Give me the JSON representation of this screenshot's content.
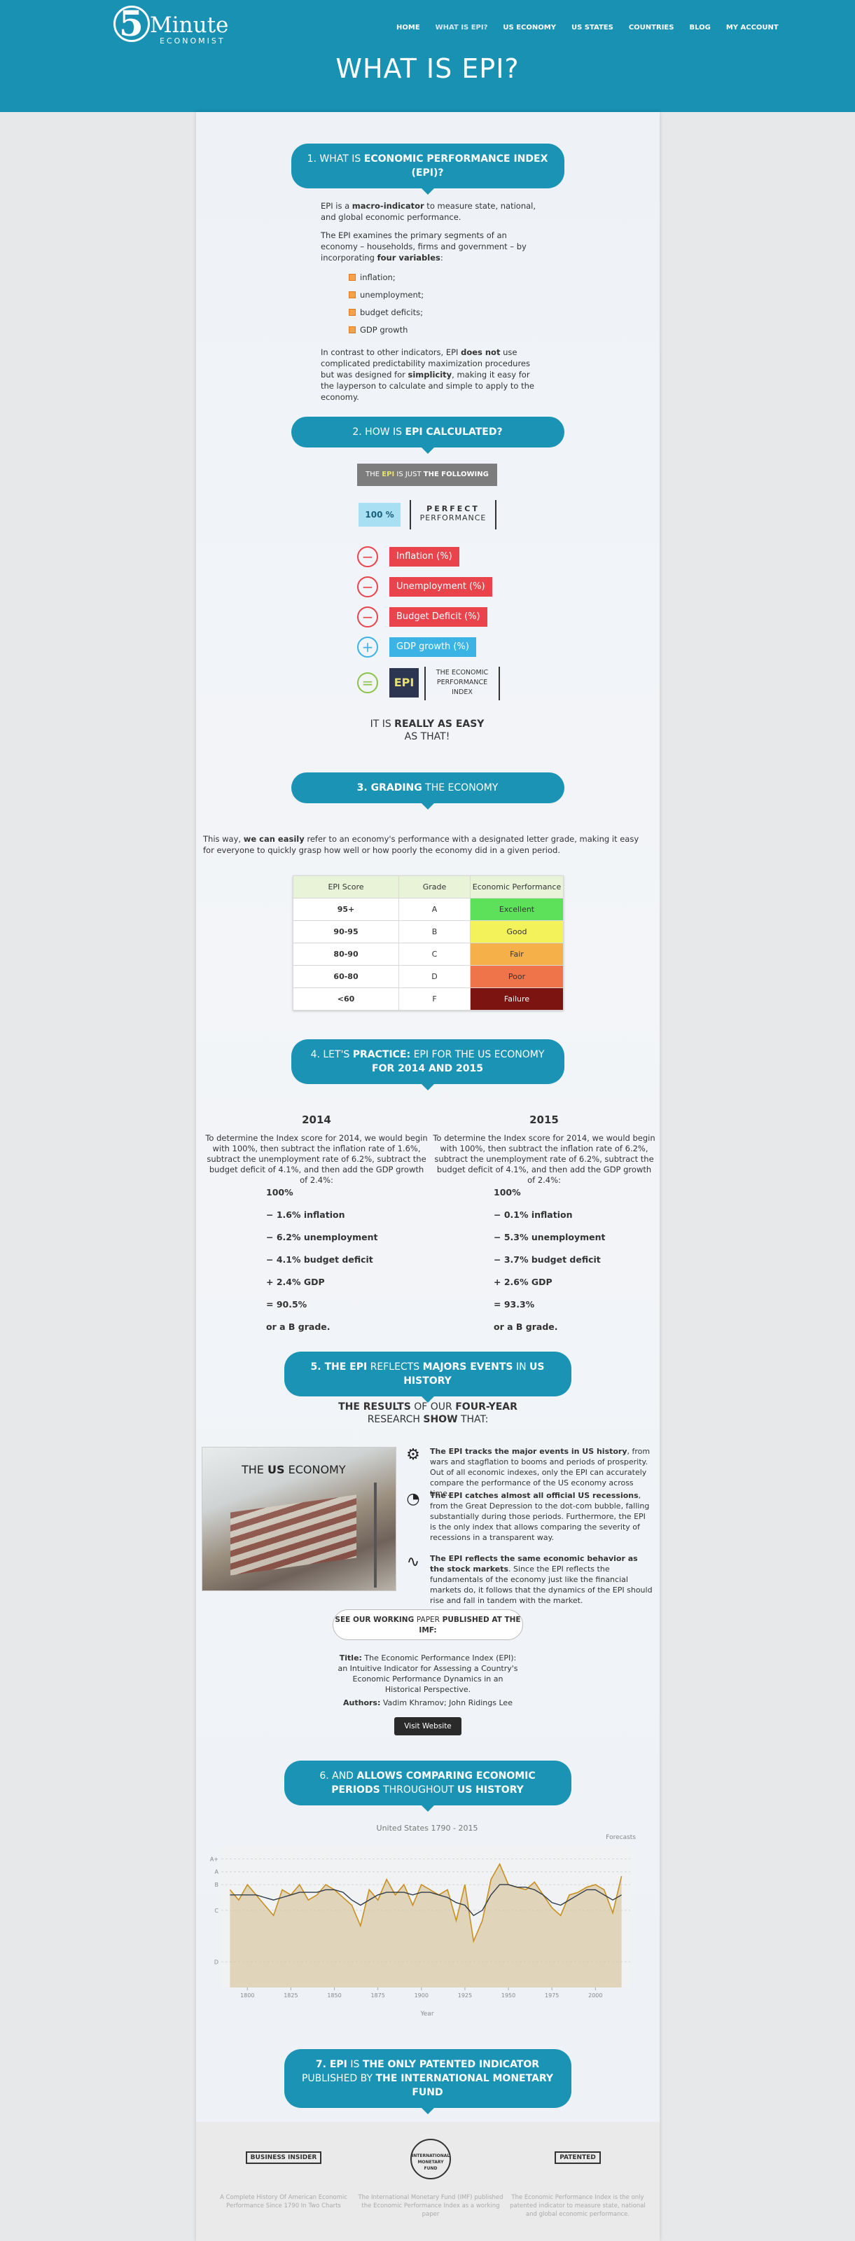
{
  "header": {
    "logo_number": "5",
    "logo_word": "Minute",
    "logo_sub": "ECONOMIST",
    "nav": [
      "HOME",
      "WHAT IS EPI?",
      "US ECONOMY",
      "US STATES",
      "COUNTRIES",
      "BLOG",
      "MY ACCOUNT"
    ],
    "title": "WHAT IS EPI?"
  },
  "section1": {
    "heading": {
      "parts": [
        "1. WHAT IS ",
        "ECONOMIC PERFORMANCE INDEX (EPI)?"
      ],
      "bold_first": false
    },
    "paragraphs": [
      [
        "EPI is a ",
        "macro-indicator",
        " to measure state, national, and global economic performance."
      ],
      [
        "The EPI examines the primary segments of an economy – households, firms and government – by incorporating ",
        "four variables",
        ":"
      ]
    ],
    "bullets": [
      "inflation;",
      "unemployment;",
      "budget deficits;",
      "GDP growth"
    ],
    "closing": [
      "In contrast to other indicators, EPI ",
      "does not",
      " use complicated predictability maximization procedures but was designed for ",
      "simplicity",
      ", making it easy for the layperson to calculate and simple to apply to the economy."
    ]
  },
  "section2": {
    "heading": {
      "parts": [
        "2. HOW IS ",
        "EPI CALCULATED?"
      ],
      "bold_first": false
    },
    "banner": [
      "THE ",
      "EPI",
      " IS JUST ",
      "THE FOLLOWING"
    ],
    "start": {
      "value": "100 %",
      "top": "PERFECT",
      "bottom": "PERFORMANCE"
    },
    "items": [
      {
        "sign": "−",
        "label": "Inflation (%)",
        "color": "#e9434b"
      },
      {
        "sign": "−",
        "label": "Unemployment (%)",
        "color": "#e9434b"
      },
      {
        "sign": "−",
        "label": "Budget Deficit (%)",
        "color": "#e9434b"
      },
      {
        "sign": "+",
        "label": "GDP growth (%)",
        "color": "#3bb3e4"
      }
    ],
    "result": {
      "sign": "=",
      "label": "EPI",
      "top": "THE ECONOMIC",
      "middle": "PERFORMANCE",
      "bottom": "INDEX"
    },
    "closing": {
      "parts": [
        "IT IS ",
        "REALLY AS EASY"
      ],
      "line2": "AS THAT!"
    }
  },
  "section3": {
    "heading": {
      "parts": [
        "3. GRADING",
        " THE ECONOMY"
      ],
      "bold_first": true
    },
    "intro": [
      "This way, ",
      "we can easily",
      " refer to an economy's performance with a designated letter grade, making it easy for everyone to quickly grasp how well or how poorly the economy did in a given period."
    ],
    "table": {
      "header": [
        "EPI Score",
        "Grade",
        "Economic Performance"
      ],
      "rows": [
        [
          "95+",
          "A",
          "Excellent"
        ],
        [
          "90-95",
          "B",
          "Good"
        ],
        [
          "80-90",
          "C",
          "Fair"
        ],
        [
          "60-80",
          "D",
          "Poor"
        ],
        [
          "<60",
          "F",
          "Failure"
        ]
      ],
      "colors": [
        "#5de05a",
        "#f4f25a",
        "#f5b04a",
        "#ef7449",
        "#7c1412"
      ]
    }
  },
  "section4": {
    "heading": {
      "parts": [
        "4. LET'S ",
        "PRACTICE:",
        " EPI FOR THE US ECONOMY ",
        "FOR 2014 AND 2015"
      ],
      "bold_first": false
    },
    "columns": [
      {
        "year": "2014",
        "text": "To determine the Index score for 2014, we would begin with 100%, then subtract the inflation rate of 1.6%, subtract the unemployment rate of 6.2%, subtract the budget deficit of 4.1%, and then add the GDP growth of 2.4%:",
        "steps": [
          "100%",
          "− 1.6% inflation",
          "− 6.2% unemployment",
          "− 4.1% budget deficit",
          "+ 2.4% GDP",
          "= 90.5%",
          "or a B grade."
        ]
      },
      {
        "year": "2015",
        "text": "To determine the Index score for 2014, we would begin with 100%, then subtract the inflation rate of 6.2%, subtract the unemployment rate of 6.2%, subtract the budget deficit of 4.1%, and then add the GDP growth of 2.4%:",
        "steps": [
          "100%",
          "− 0.1% inflation",
          "− 5.3% unemployment",
          "− 3.7% budget deficit",
          "+ 2.6% GDP",
          "= 93.3%",
          "or a B grade."
        ]
      }
    ]
  },
  "section5": {
    "heading": {
      "parts": [
        "5. THE EPI",
        " REFLECTS ",
        "MAJORS EVENTS",
        " IN ",
        "US HISTORY"
      ],
      "bold_first": true
    },
    "results": {
      "parts": [
        "THE RESULTS",
        " OF OUR ",
        "FOUR-YEAR"
      ],
      "line2": [
        "RESEARCH ",
        "SHOW",
        " THAT:"
      ]
    },
    "image_caption": [
      "THE ",
      "US",
      " ECONOMY"
    ],
    "points": [
      [
        "The EPI tracks the major events in US history",
        ", from wars and stagflation to booms and periods of prosperity. Out of all economic indexes, only the EPI can accurately compare the performance of the US economy across time."
      ],
      [
        "The EPI catches almost all official US recessions",
        ", from the Great Depression to the dot-com bubble, falling substantially during those periods. Furthermore, the EPI is the only index that allows comparing the severity of recessions in a transparent way."
      ],
      [
        "The EPI reflects the same economic behavior as the stock markets",
        ". Since the EPI reflects the fundamentals of the economy just like the financial markets do, it follows that the dynamics of the EPI should rise and fall in tandem with the market."
      ]
    ],
    "paper": [
      "SEE OUR WORKING ",
      "PAPER",
      " PUBLISHED AT THE IMF:"
    ],
    "paper_title": [
      "Title:",
      " The Economic Performance Index (EPI): an Intuitive Indicator for Assessing a Country's Economic Performance Dynamics in an Historical Perspective."
    ],
    "authors": [
      "Authors:",
      " Vadim Khramov; John Ridings Lee"
    ],
    "button": "Visit Website"
  },
  "section6": {
    "heading": {
      "parts": [
        "6. AND ",
        "ALLOWS COMPARING ECONOMIC PERIODS",
        " THROUGHOUT ",
        "US HISTORY"
      ],
      "bold_first": false
    }
  },
  "chart_data": {
    "type": "line",
    "title": "United States 1790 - 2015",
    "annotation": "Forecasts",
    "x_label": "Year",
    "x": [
      1790,
      1795,
      1800,
      1805,
      1810,
      1815,
      1820,
      1825,
      1830,
      1835,
      1840,
      1845,
      1850,
      1855,
      1860,
      1865,
      1870,
      1875,
      1880,
      1885,
      1890,
      1895,
      1900,
      1905,
      1910,
      1915,
      1920,
      1925,
      1930,
      1935,
      1940,
      1945,
      1950,
      1955,
      1960,
      1965,
      1970,
      1975,
      1980,
      1985,
      1990,
      1995,
      2000,
      2005,
      2010,
      2015
    ],
    "series": [
      {
        "color": "#c89020",
        "values": [
          88,
          84,
          90,
          86,
          82,
          78,
          88,
          86,
          90,
          84,
          86,
          90,
          88,
          85,
          82,
          74,
          88,
          84,
          92,
          86,
          90,
          82,
          90,
          88,
          86,
          88,
          76,
          90,
          68,
          76,
          92,
          98,
          90,
          89,
          88,
          91,
          86,
          81,
          78,
          86,
          87,
          89,
          90,
          88,
          79,
          93.3
        ]
      },
      {
        "color": "#2f3b48",
        "values": [
          86,
          86,
          86,
          86,
          85,
          84,
          85,
          86,
          87,
          87,
          87,
          88,
          88,
          87,
          84,
          82,
          84,
          86,
          87,
          87,
          87,
          86,
          87,
          87,
          86,
          85,
          83,
          82,
          78,
          80,
          86,
          90,
          90,
          89,
          89,
          88,
          86,
          83,
          82,
          84,
          86,
          88,
          88,
          86,
          84,
          86
        ]
      }
    ],
    "xlim": [
      1785,
      2020
    ],
    "ylim": [
      50,
      105
    ],
    "xticks": [
      1800,
      1825,
      1850,
      1875,
      1900,
      1925,
      1950,
      1975,
      2000
    ],
    "yticks": [
      {
        "value": 100,
        "label": "A+"
      },
      {
        "value": 95,
        "label": "A"
      },
      {
        "value": 90,
        "label": "B"
      },
      {
        "value": 80,
        "label": "C"
      },
      {
        "value": 60,
        "label": "D"
      }
    ],
    "fill": "#d9c7a2"
  },
  "section7": {
    "heading": {
      "parts": [
        "7. EPI",
        " IS ",
        "THE ONLY PATENTED INDICATOR",
        " PUBLISHED BY ",
        "THE INTERNATIONAL MONETARY FUND"
      ],
      "bold_first": true
    }
  },
  "footer": [
    {
      "logo": "BUSINESS INSIDER",
      "caption": "A Complete History Of American Economic Performance Since 1790 In Two Charts"
    },
    {
      "logo": "INTERNATIONAL MONETARY FUND",
      "caption": "The International Monetary Fund (IMF) published the Economic Performance Index as a working paper"
    },
    {
      "logo": "PATENTED",
      "caption": "The Economic Performance Index is the only patented indicator to measure state, national and global economic performance."
    }
  ]
}
